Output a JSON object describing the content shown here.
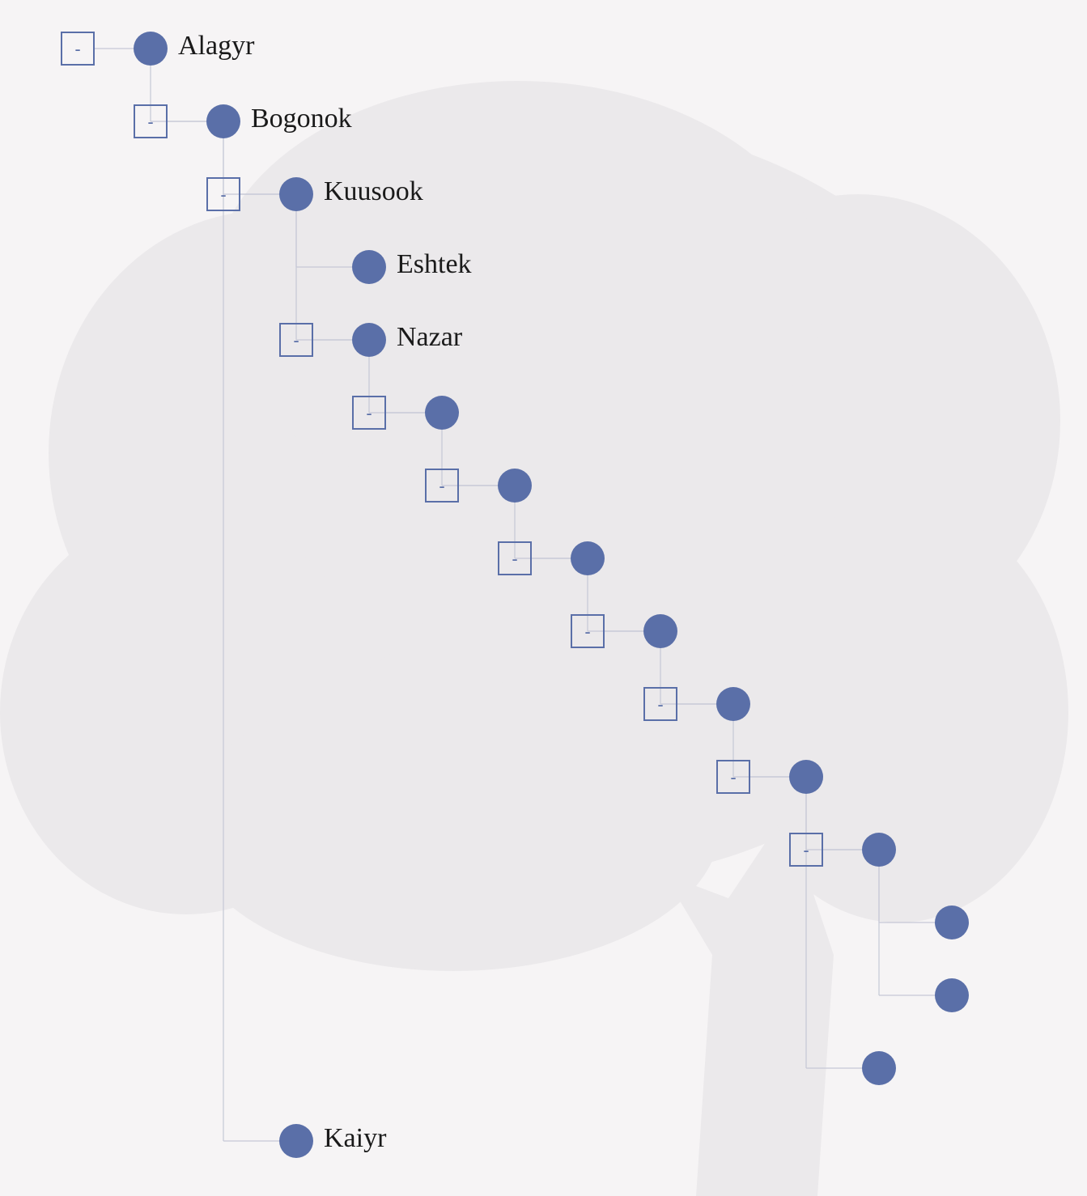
{
  "tree": {
    "toggle_symbol": "-",
    "nodes": [
      {
        "id": "n0",
        "label": "Alagyr",
        "has_toggle": true
      },
      {
        "id": "n1",
        "label": "Bogonok",
        "has_toggle": true
      },
      {
        "id": "n2",
        "label": "Kuusook",
        "has_toggle": true
      },
      {
        "id": "n3",
        "label": "Eshtek",
        "has_toggle": false
      },
      {
        "id": "n4",
        "label": "Nazar",
        "has_toggle": true
      },
      {
        "id": "n5",
        "label": "",
        "has_toggle": true
      },
      {
        "id": "n6",
        "label": "",
        "has_toggle": true
      },
      {
        "id": "n7",
        "label": "",
        "has_toggle": true
      },
      {
        "id": "n8",
        "label": "",
        "has_toggle": true
      },
      {
        "id": "n9",
        "label": "",
        "has_toggle": true
      },
      {
        "id": "n10",
        "label": "",
        "has_toggle": true
      },
      {
        "id": "n11",
        "label": "",
        "has_toggle": true
      },
      {
        "id": "n12",
        "label": "",
        "has_toggle": false
      },
      {
        "id": "n13",
        "label": "",
        "has_toggle": false
      },
      {
        "id": "n14",
        "label": "",
        "has_toggle": false
      },
      {
        "id": "n15",
        "label": "Kaiyr",
        "has_toggle": false
      }
    ]
  },
  "colors": {
    "node": "#5a6fa8",
    "link": "#c5c8d6",
    "background": "#f6f4f5",
    "tree_silhouette": "#ebe9eb"
  }
}
